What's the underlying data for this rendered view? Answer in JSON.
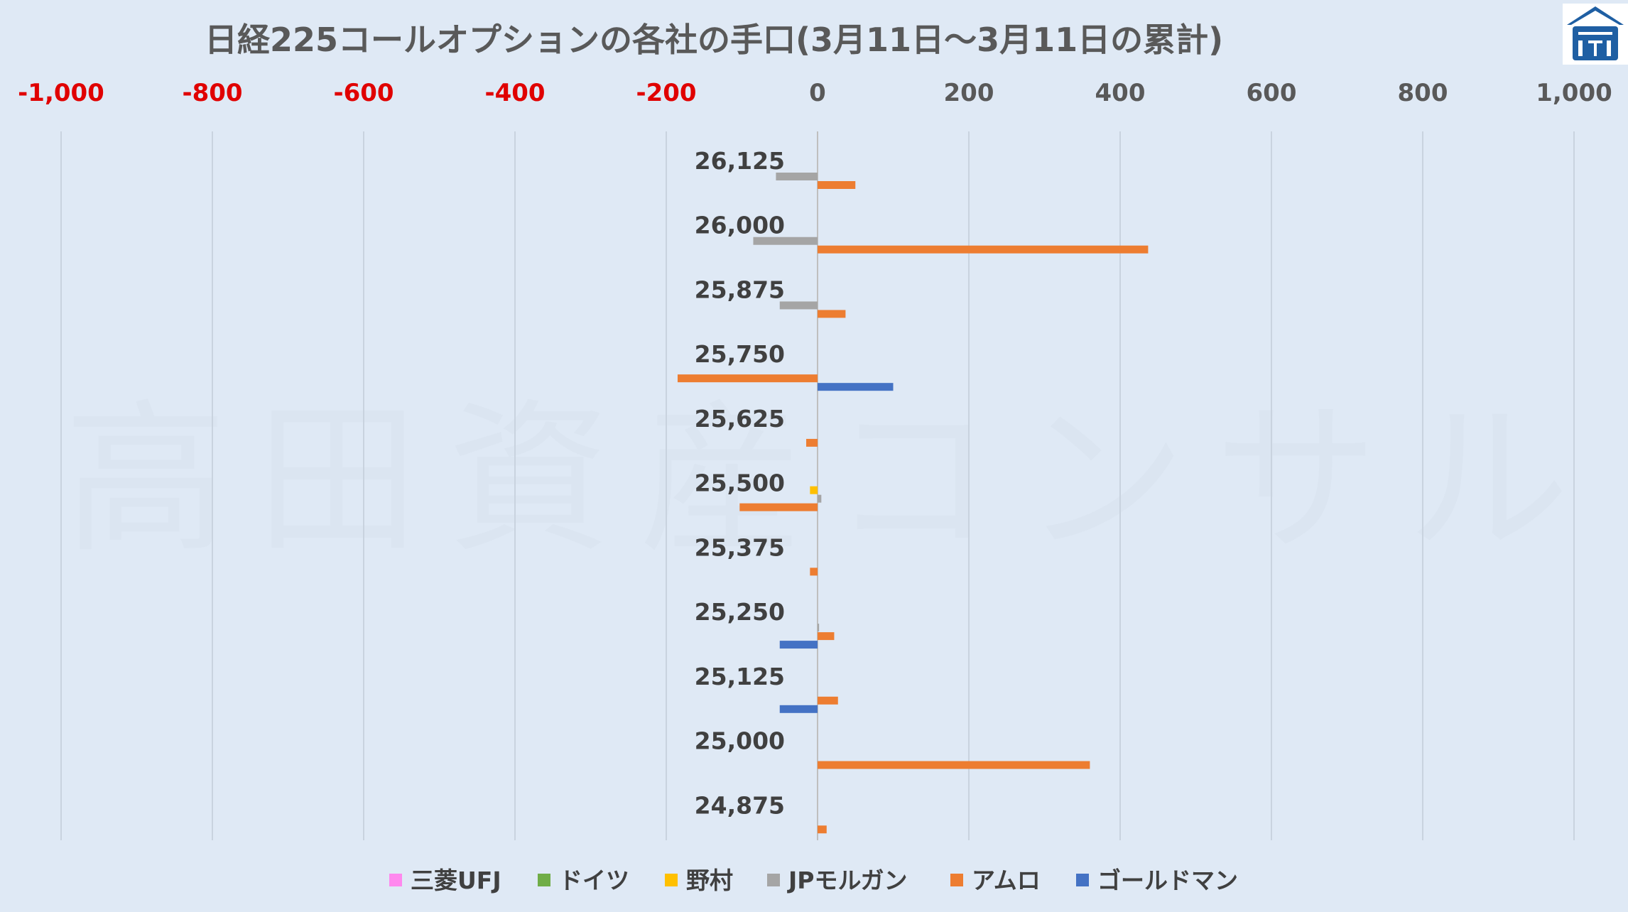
{
  "chart_data": {
    "type": "bar",
    "orientation": "horizontal",
    "title": "日経225コールオプションの各社の手口(3月11日～3月11日の累計)",
    "watermark": "高田資産コンサル",
    "xlim": [
      -1000,
      1000
    ],
    "x_ticks": [
      {
        "value": -1000,
        "label": "-1,000"
      },
      {
        "value": -800,
        "label": "-800"
      },
      {
        "value": -600,
        "label": "-600"
      },
      {
        "value": -400,
        "label": "-400"
      },
      {
        "value": -200,
        "label": "-200"
      },
      {
        "value": 0,
        "label": "0"
      },
      {
        "value": 200,
        "label": "200"
      },
      {
        "value": 400,
        "label": "400"
      },
      {
        "value": 600,
        "label": "600"
      },
      {
        "value": 800,
        "label": "800"
      },
      {
        "value": 1000,
        "label": "1,000"
      }
    ],
    "negative_tick_color": "#e00000",
    "positive_tick_color": "#595959",
    "grid": true,
    "legend_position": "bottom",
    "categories": [
      "26,125",
      "26,000",
      "25,875",
      "25,750",
      "25,625",
      "25,500",
      "25,375",
      "25,250",
      "25,125",
      "25,000",
      "24,875"
    ],
    "series": [
      {
        "name": "三菱UFJ",
        "color": "#ff88ee",
        "values": [
          0,
          0,
          0,
          0,
          0,
          0,
          0,
          0,
          0,
          0,
          0
        ]
      },
      {
        "name": "ドイツ",
        "color": "#70ad47",
        "values": [
          0,
          0,
          0,
          0,
          0,
          0,
          0,
          0,
          0,
          0,
          0
        ]
      },
      {
        "name": "野村",
        "color": "#ffc000",
        "values": [
          0,
          0,
          0,
          0,
          0,
          -10,
          0,
          0,
          0,
          0,
          0
        ]
      },
      {
        "name": "JPモルガン",
        "color": "#a5a5a5",
        "values": [
          -55,
          -85,
          -50,
          0,
          0,
          5,
          0,
          2,
          0,
          0,
          0
        ]
      },
      {
        "name": "アムロ",
        "color": "#ed7d31",
        "values": [
          50,
          437,
          37,
          -185,
          -15,
          -103,
          -10,
          22,
          27,
          360,
          12
        ]
      },
      {
        "name": "ゴールドマン",
        "color": "#4472c4",
        "values": [
          0,
          0,
          0,
          100,
          0,
          0,
          0,
          -50,
          -50,
          0,
          0
        ]
      }
    ]
  },
  "logo": {
    "name": "logo-icon"
  }
}
